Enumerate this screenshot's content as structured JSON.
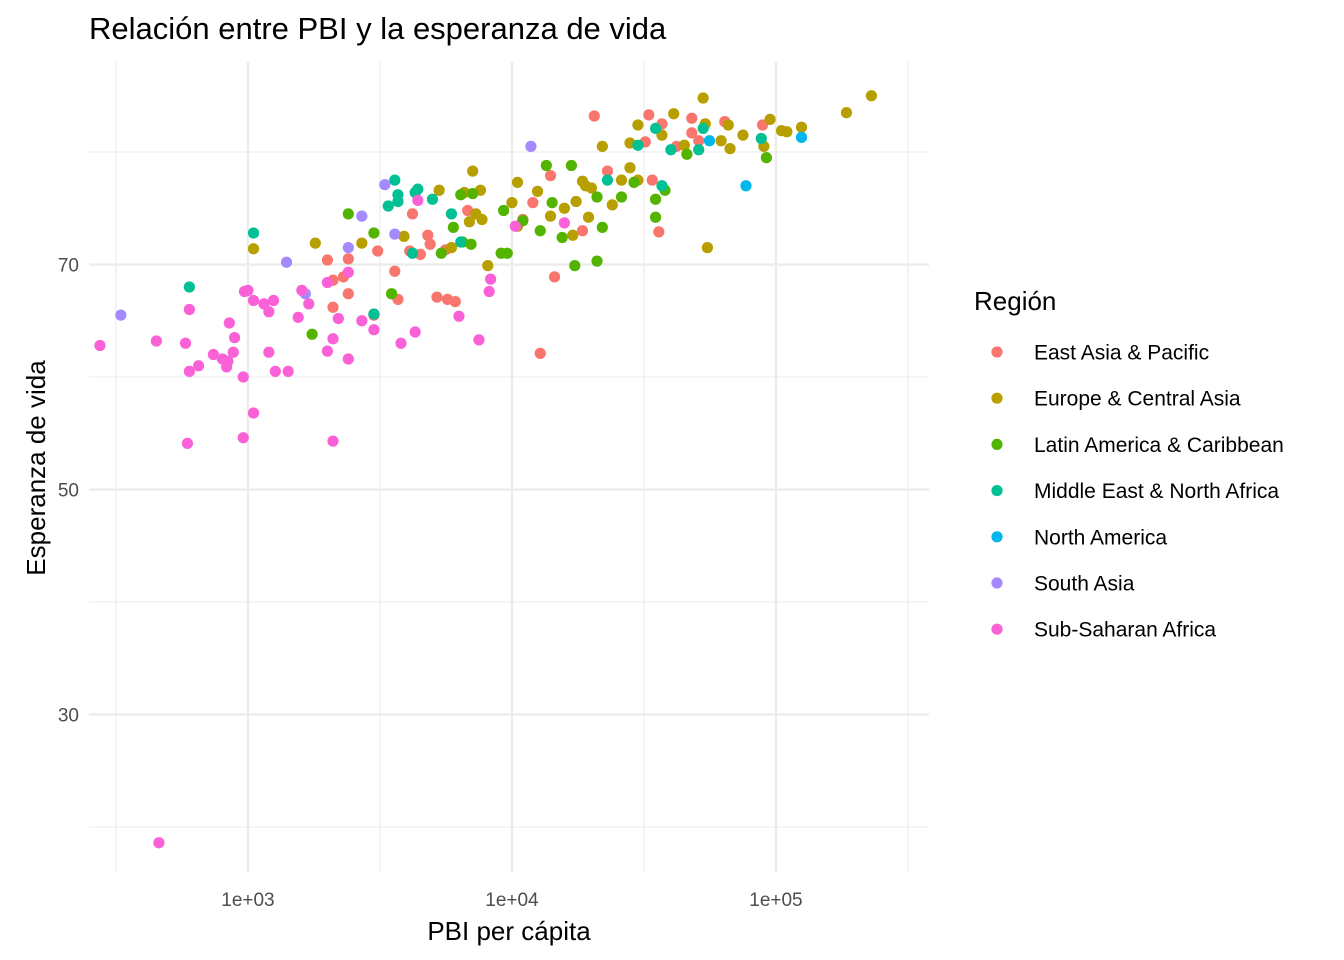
{
  "chart_data": {
    "type": "scatter",
    "title": "Relación entre  PBI y la esperanza de vida",
    "xlabel": "PBI per cápita",
    "ylabel": "Esperanza de vida",
    "x_scale": "log10",
    "xlim": [
      250,
      380000
    ],
    "ylim": [
      16,
      88
    ],
    "x_ticks": [
      {
        "value": 1000,
        "label": "1e+03"
      },
      {
        "value": 10000,
        "label": "1e+04"
      },
      {
        "value": 100000,
        "label": "1e+05"
      }
    ],
    "y_ticks": [
      {
        "value": 30,
        "label": "30"
      },
      {
        "value": 50,
        "label": "50"
      },
      {
        "value": 70,
        "label": "70"
      }
    ],
    "grid": true,
    "legend_title": "Región",
    "legend_position": "right",
    "series": [
      {
        "name": "East Asia & Pacific",
        "color": "#F8766D",
        "points": [
          [
            20500,
            83.2
          ],
          [
            33000,
            83.3
          ],
          [
            37000,
            82.5
          ],
          [
            48000,
            83.0
          ],
          [
            64000,
            82.7
          ],
          [
            89000,
            82.4
          ],
          [
            48000,
            81.7
          ],
          [
            51000,
            81.0
          ],
          [
            42000,
            80.5
          ],
          [
            32000,
            80.9
          ],
          [
            34000,
            77.5
          ],
          [
            14000,
            77.9
          ],
          [
            23000,
            78.3
          ],
          [
            12000,
            75.5
          ],
          [
            4200,
            74.5
          ],
          [
            6800,
            74.8
          ],
          [
            11000,
            74.0
          ],
          [
            18500,
            73.0
          ],
          [
            36000,
            72.9
          ],
          [
            4800,
            72.6
          ],
          [
            4900,
            71.8
          ],
          [
            5600,
            71.3
          ],
          [
            4100,
            71.2
          ],
          [
            3100,
            71.2
          ],
          [
            4500,
            70.9
          ],
          [
            2000,
            70.4
          ],
          [
            2400,
            70.5
          ],
          [
            3600,
            69.4
          ],
          [
            2300,
            68.9
          ],
          [
            2100,
            68.6
          ],
          [
            2400,
            67.4
          ],
          [
            3700,
            66.9
          ],
          [
            5200,
            67.1
          ],
          [
            5700,
            66.9
          ],
          [
            6100,
            66.7
          ],
          [
            2100,
            66.2
          ],
          [
            3000,
            65.5
          ],
          [
            14500,
            68.9
          ],
          [
            12800,
            62.1
          ]
        ]
      },
      {
        "name": "Europe & Central Asia",
        "color": "#B79F00",
        "points": [
          [
            230000,
            85.0
          ],
          [
            53000,
            84.8
          ],
          [
            185000,
            83.5
          ],
          [
            30000,
            82.4
          ],
          [
            41000,
            83.4
          ],
          [
            54000,
            82.5
          ],
          [
            66000,
            82.4
          ],
          [
            95000,
            82.9
          ],
          [
            125000,
            82.2
          ],
          [
            105000,
            81.9
          ],
          [
            110000,
            81.8
          ],
          [
            75000,
            81.5
          ],
          [
            62000,
            81.0
          ],
          [
            67000,
            80.3
          ],
          [
            90000,
            80.5
          ],
          [
            45000,
            80.6
          ],
          [
            37000,
            81.5
          ],
          [
            28000,
            80.8
          ],
          [
            22000,
            80.5
          ],
          [
            18500,
            77.4
          ],
          [
            20000,
            76.8
          ],
          [
            26000,
            77.5
          ],
          [
            28000,
            78.6
          ],
          [
            30000,
            77.5
          ],
          [
            19000,
            77.0
          ],
          [
            17500,
            75.6
          ],
          [
            12500,
            76.5
          ],
          [
            10500,
            77.3
          ],
          [
            7100,
            78.3
          ],
          [
            7600,
            76.6
          ],
          [
            10000,
            75.5
          ],
          [
            14000,
            74.3
          ],
          [
            15800,
            75.0
          ],
          [
            19500,
            74.2
          ],
          [
            24000,
            75.3
          ],
          [
            5300,
            76.6
          ],
          [
            6600,
            76.4
          ],
          [
            7300,
            74.5
          ],
          [
            7700,
            74.0
          ],
          [
            6900,
            73.8
          ],
          [
            10500,
            73.4
          ],
          [
            17000,
            72.6
          ],
          [
            3900,
            72.5
          ],
          [
            2700,
            71.9
          ],
          [
            1800,
            71.9
          ],
          [
            1050,
            71.4
          ],
          [
            5900,
            71.5
          ],
          [
            8100,
            69.9
          ],
          [
            55000,
            71.5
          ]
        ]
      },
      {
        "name": "Latin America & Caribbean",
        "color": "#53B400",
        "points": [
          [
            13500,
            78.8
          ],
          [
            16800,
            78.8
          ],
          [
            14200,
            75.5
          ],
          [
            21000,
            76.0
          ],
          [
            26000,
            76.0
          ],
          [
            29000,
            77.3
          ],
          [
            38000,
            76.6
          ],
          [
            35000,
            74.2
          ],
          [
            35000,
            75.8
          ],
          [
            46000,
            79.8
          ],
          [
            92000,
            79.5
          ],
          [
            9300,
            74.8
          ],
          [
            11000,
            73.9
          ],
          [
            12800,
            73.0
          ],
          [
            15500,
            72.4
          ],
          [
            22000,
            73.3
          ],
          [
            6400,
            76.2
          ],
          [
            7100,
            76.3
          ],
          [
            6000,
            73.3
          ],
          [
            6500,
            72.0
          ],
          [
            7000,
            71.8
          ],
          [
            5400,
            71.0
          ],
          [
            9100,
            71.0
          ],
          [
            9600,
            71.0
          ],
          [
            2400,
            74.5
          ],
          [
            3000,
            72.8
          ],
          [
            3500,
            67.4
          ],
          [
            1750,
            63.8
          ],
          [
            17300,
            69.9
          ],
          [
            21000,
            70.3
          ]
        ]
      },
      {
        "name": "Middle East & North Africa",
        "color": "#00C094",
        "points": [
          [
            35000,
            82.1
          ],
          [
            37000,
            77.0
          ],
          [
            40000,
            80.2
          ],
          [
            51000,
            80.2
          ],
          [
            53000,
            82.1
          ],
          [
            88000,
            81.2
          ],
          [
            30000,
            80.6
          ],
          [
            23000,
            77.5
          ],
          [
            3600,
            77.5
          ],
          [
            3700,
            76.2
          ],
          [
            4300,
            76.4
          ],
          [
            4400,
            76.7
          ],
          [
            5000,
            75.8
          ],
          [
            3400,
            75.2
          ],
          [
            3700,
            75.6
          ],
          [
            5900,
            74.5
          ],
          [
            6400,
            72.0
          ],
          [
            4200,
            71.0
          ],
          [
            1050,
            72.8
          ],
          [
            3000,
            65.6
          ],
          [
            600,
            68.0
          ]
        ]
      },
      {
        "name": "North America",
        "color": "#00B6EB",
        "points": [
          [
            125000,
            81.3
          ],
          [
            56000,
            81.0
          ],
          [
            77000,
            77.0
          ]
        ]
      },
      {
        "name": "South Asia",
        "color": "#A58AFF",
        "points": [
          [
            11800,
            80.5
          ],
          [
            3300,
            77.1
          ],
          [
            2700,
            74.3
          ],
          [
            3600,
            72.7
          ],
          [
            2400,
            71.5
          ],
          [
            1400,
            70.2
          ],
          [
            1650,
            67.4
          ],
          [
            330,
            65.5
          ]
        ]
      },
      {
        "name": "Sub-Saharan Africa",
        "color": "#FB61D7",
        "points": [
          [
            4400,
            75.7
          ],
          [
            10300,
            73.4
          ],
          [
            15800,
            73.7
          ],
          [
            970,
            67.6
          ],
          [
            1000,
            67.7
          ],
          [
            1050,
            66.8
          ],
          [
            1150,
            66.5
          ],
          [
            1250,
            66.8
          ],
          [
            1600,
            67.7
          ],
          [
            1700,
            66.5
          ],
          [
            2000,
            68.4
          ],
          [
            2700,
            65.0
          ],
          [
            3000,
            64.2
          ],
          [
            2200,
            65.2
          ],
          [
            1550,
            65.3
          ],
          [
            1200,
            65.8
          ],
          [
            600,
            66.0
          ],
          [
            850,
            64.8
          ],
          [
            890,
            63.5
          ],
          [
            450,
            63.2
          ],
          [
            580,
            63.0
          ],
          [
            880,
            62.2
          ],
          [
            1200,
            62.2
          ],
          [
            2000,
            62.3
          ],
          [
            2100,
            63.4
          ],
          [
            2400,
            61.6
          ],
          [
            830,
            60.9
          ],
          [
            840,
            61.4
          ],
          [
            800,
            61.6
          ],
          [
            740,
            62.0
          ],
          [
            650,
            61.0
          ],
          [
            600,
            60.5
          ],
          [
            960,
            60.0
          ],
          [
            1270,
            60.5
          ],
          [
            1420,
            60.5
          ],
          [
            3800,
            63.0
          ],
          [
            4300,
            64.0
          ],
          [
            6300,
            65.4
          ],
          [
            7500,
            63.3
          ],
          [
            8200,
            67.6
          ],
          [
            8300,
            68.7
          ],
          [
            2400,
            69.3
          ],
          [
            1050,
            56.8
          ],
          [
            960,
            54.6
          ],
          [
            2100,
            54.3
          ],
          [
            590,
            54.1
          ],
          [
            275,
            62.8
          ],
          [
            460,
            18.6
          ]
        ]
      }
    ]
  }
}
